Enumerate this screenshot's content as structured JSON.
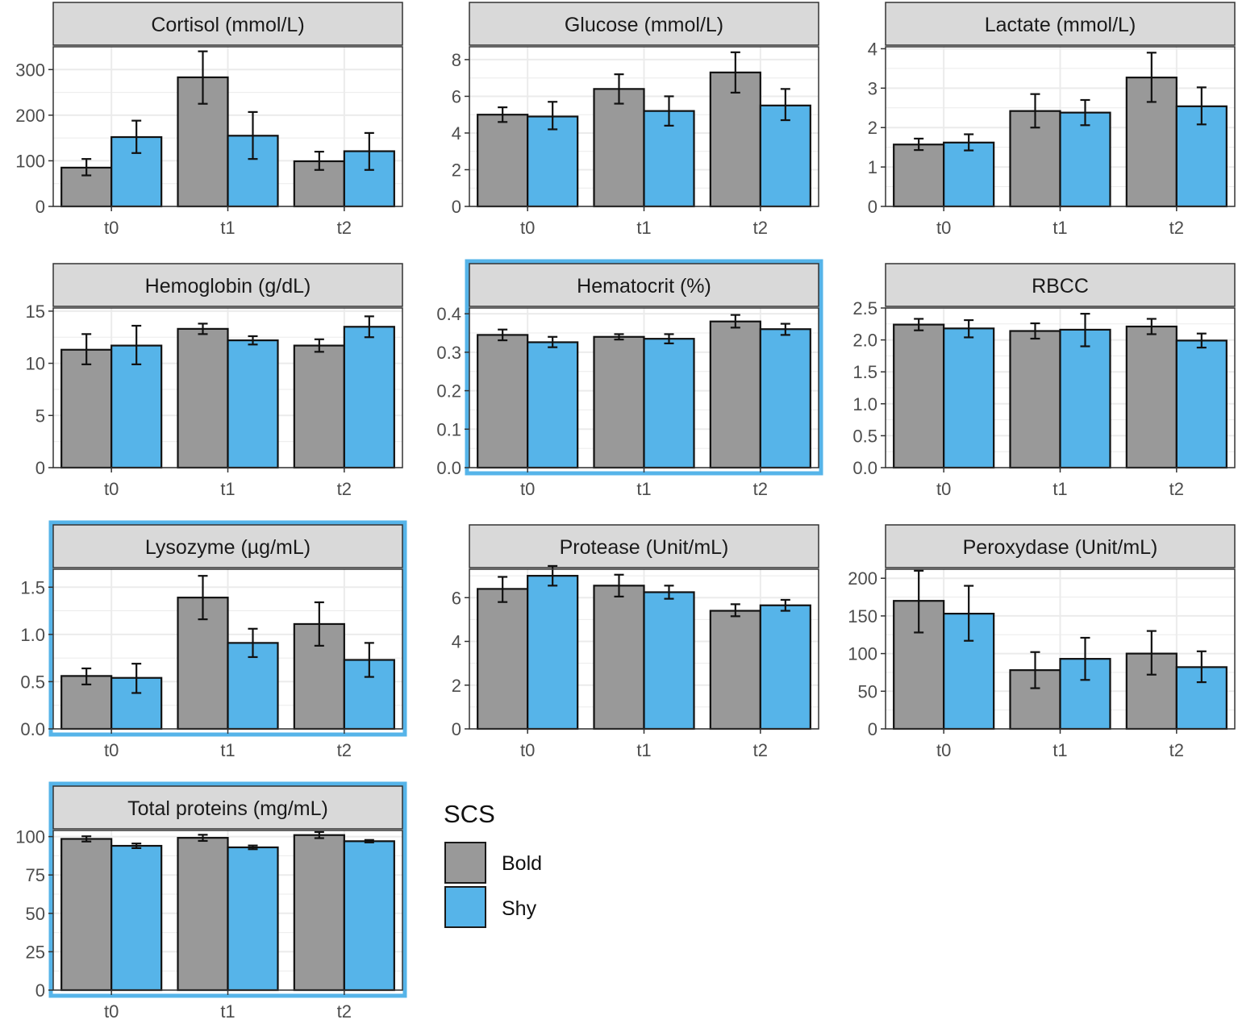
{
  "colors": {
    "bold": "#999999",
    "shy": "#56b4e9",
    "highlight": "#56b4e9",
    "strip": "#d9d9d9",
    "grid": "#ebebeb"
  },
  "legend": {
    "title": "SCS",
    "items": [
      {
        "label": "Bold",
        "color": "#999999"
      },
      {
        "label": "Shy",
        "color": "#56b4e9"
      }
    ]
  },
  "chart_data": [
    {
      "type": "bar",
      "title": "Cortisol (mmol/L)",
      "highlighted": false,
      "categories": [
        "t0",
        "t1",
        "t2"
      ],
      "ylim": [
        0,
        350
      ],
      "yticks": [
        0,
        100,
        200,
        300
      ],
      "ytick_labels": [
        "0",
        "100",
        "200",
        "300"
      ],
      "series": [
        {
          "name": "Bold",
          "values": [
            85,
            283,
            99
          ],
          "err_low": [
            68,
            225,
            80
          ],
          "err_high": [
            104,
            340,
            120
          ]
        },
        {
          "name": "Shy",
          "values": [
            152,
            155,
            121
          ],
          "err_low": [
            117,
            104,
            80
          ],
          "err_high": [
            188,
            207,
            161
          ]
        }
      ]
    },
    {
      "type": "bar",
      "title": "Glucose (mmol/L)",
      "highlighted": false,
      "categories": [
        "t0",
        "t1",
        "t2"
      ],
      "ylim": [
        0,
        8.7
      ],
      "yticks": [
        0,
        2,
        4,
        6,
        8
      ],
      "ytick_labels": [
        "0",
        "2",
        "4",
        "6",
        "8"
      ],
      "series": [
        {
          "name": "Bold",
          "values": [
            5.0,
            6.4,
            7.3
          ],
          "err_low": [
            4.6,
            5.6,
            6.2
          ],
          "err_high": [
            5.4,
            7.2,
            8.4
          ]
        },
        {
          "name": "Shy",
          "values": [
            4.9,
            5.2,
            5.5
          ],
          "err_low": [
            4.2,
            4.4,
            4.7
          ],
          "err_high": [
            5.7,
            6.0,
            6.4
          ]
        }
      ]
    },
    {
      "type": "bar",
      "title": "Lactate (mmol/L)",
      "highlighted": false,
      "categories": [
        "t0",
        "t1",
        "t2"
      ],
      "ylim": [
        0,
        4.05
      ],
      "yticks": [
        0,
        1,
        2,
        3,
        4
      ],
      "ytick_labels": [
        "0",
        "1",
        "2",
        "3",
        "4"
      ],
      "series": [
        {
          "name": "Bold",
          "values": [
            1.57,
            2.42,
            3.27
          ],
          "err_low": [
            1.43,
            2.0,
            2.65
          ],
          "err_high": [
            1.72,
            2.85,
            3.9
          ]
        },
        {
          "name": "Shy",
          "values": [
            1.62,
            2.38,
            2.54
          ],
          "err_low": [
            1.42,
            2.06,
            2.08
          ],
          "err_high": [
            1.83,
            2.7,
            3.02
          ]
        }
      ]
    },
    {
      "type": "bar",
      "title": "Hemoglobin (g/dL)",
      "highlighted": false,
      "categories": [
        "t0",
        "t1",
        "t2"
      ],
      "ylim": [
        0,
        15.3
      ],
      "yticks": [
        0,
        5,
        10,
        15
      ],
      "ytick_labels": [
        "0",
        "5",
        "10",
        "15"
      ],
      "series": [
        {
          "name": "Bold",
          "values": [
            11.3,
            13.3,
            11.7
          ],
          "err_low": [
            9.9,
            12.8,
            11.1
          ],
          "err_high": [
            12.8,
            13.8,
            12.3
          ]
        },
        {
          "name": "Shy",
          "values": [
            11.7,
            12.2,
            13.5
          ],
          "err_low": [
            9.9,
            11.8,
            12.5
          ],
          "err_high": [
            13.6,
            12.6,
            14.5
          ]
        }
      ]
    },
    {
      "type": "bar",
      "title": "Hematocrit (%)",
      "highlighted": true,
      "categories": [
        "t0",
        "t1",
        "t2"
      ],
      "ylim": [
        0,
        0.415
      ],
      "yticks": [
        0,
        0.1,
        0.2,
        0.3,
        0.4
      ],
      "ytick_labels": [
        "0.0",
        "0.1",
        "0.2",
        "0.3",
        "0.4"
      ],
      "series": [
        {
          "name": "Bold",
          "values": [
            0.345,
            0.34,
            0.38
          ],
          "err_low": [
            0.331,
            0.333,
            0.364
          ],
          "err_high": [
            0.359,
            0.347,
            0.397
          ]
        },
        {
          "name": "Shy",
          "values": [
            0.326,
            0.335,
            0.36
          ],
          "err_low": [
            0.313,
            0.323,
            0.345
          ],
          "err_high": [
            0.34,
            0.347,
            0.374
          ]
        }
      ]
    },
    {
      "type": "bar",
      "title": "RBCC",
      "highlighted": false,
      "categories": [
        "t0",
        "t1",
        "t2"
      ],
      "ylim": [
        0,
        2.5
      ],
      "yticks": [
        0,
        0.5,
        1.0,
        1.5,
        2.0,
        2.5
      ],
      "ytick_labels": [
        "0.0",
        "0.5",
        "1.0",
        "1.5",
        "2.0",
        "2.5"
      ],
      "series": [
        {
          "name": "Bold",
          "values": [
            2.24,
            2.14,
            2.21
          ],
          "err_low": [
            2.15,
            2.02,
            2.09
          ],
          "err_high": [
            2.33,
            2.26,
            2.33
          ]
        },
        {
          "name": "Shy",
          "values": [
            2.18,
            2.16,
            1.99
          ],
          "err_low": [
            2.04,
            1.9,
            1.88
          ],
          "err_high": [
            2.31,
            2.41,
            2.1
          ]
        }
      ]
    },
    {
      "type": "bar",
      "title": "Lysozyme (µg/mL)",
      "highlighted": true,
      "categories": [
        "t0",
        "t1",
        "t2"
      ],
      "ylim": [
        0,
        1.69
      ],
      "yticks": [
        0,
        0.5,
        1.0,
        1.5
      ],
      "ytick_labels": [
        "0.0",
        "0.5",
        "1.0",
        "1.5"
      ],
      "series": [
        {
          "name": "Bold",
          "values": [
            0.56,
            1.39,
            1.11
          ],
          "err_low": [
            0.47,
            1.16,
            0.88
          ],
          "err_high": [
            0.64,
            1.62,
            1.34
          ]
        },
        {
          "name": "Shy",
          "values": [
            0.54,
            0.91,
            0.73
          ],
          "err_low": [
            0.38,
            0.76,
            0.55
          ],
          "err_high": [
            0.69,
            1.06,
            0.91
          ]
        }
      ]
    },
    {
      "type": "bar",
      "title": "Protease (Unit/mL)",
      "highlighted": false,
      "categories": [
        "t0",
        "t1",
        "t2"
      ],
      "ylim": [
        0,
        7.3
      ],
      "yticks": [
        0,
        2,
        4,
        6
      ],
      "ytick_labels": [
        "0",
        "2",
        "4",
        "6"
      ],
      "series": [
        {
          "name": "Bold",
          "values": [
            6.4,
            6.55,
            5.4
          ],
          "err_low": [
            5.8,
            6.05,
            5.15
          ],
          "err_high": [
            6.95,
            7.05,
            5.7
          ]
        },
        {
          "name": "Shy",
          "values": [
            7.0,
            6.25,
            5.65
          ],
          "err_low": [
            6.55,
            5.95,
            5.4
          ],
          "err_high": [
            7.45,
            6.55,
            5.9
          ]
        }
      ]
    },
    {
      "type": "bar",
      "title": "Peroxydase (Unit/mL)",
      "highlighted": false,
      "categories": [
        "t0",
        "t1",
        "t2"
      ],
      "ylim": [
        0,
        212
      ],
      "yticks": [
        0,
        50,
        100,
        150,
        200
      ],
      "ytick_labels": [
        "0",
        "50",
        "100",
        "150",
        "200"
      ],
      "series": [
        {
          "name": "Bold",
          "values": [
            170,
            78,
            100
          ],
          "err_low": [
            128,
            54,
            72
          ],
          "err_high": [
            210,
            102,
            130
          ]
        },
        {
          "name": "Shy",
          "values": [
            153,
            93,
            82
          ],
          "err_low": [
            117,
            65,
            62
          ],
          "err_high": [
            190,
            121,
            103
          ]
        }
      ]
    },
    {
      "type": "bar",
      "title": "Total proteins (mg/mL)",
      "highlighted": true,
      "categories": [
        "t0",
        "t1",
        "t2"
      ],
      "ylim": [
        0,
        104
      ],
      "yticks": [
        0,
        25,
        50,
        75,
        100
      ],
      "ytick_labels": [
        "0",
        "25",
        "50",
        "75",
        "100"
      ],
      "series": [
        {
          "name": "Bold",
          "values": [
            98.5,
            99.2,
            101.0
          ],
          "err_low": [
            96.8,
            97.2,
            99.0
          ],
          "err_high": [
            100.2,
            101.2,
            103.0
          ]
        },
        {
          "name": "Shy",
          "values": [
            94.0,
            93.0,
            97.0
          ],
          "err_low": [
            92.5,
            91.8,
            96.2
          ],
          "err_high": [
            95.5,
            94.2,
            97.8
          ]
        }
      ]
    }
  ]
}
